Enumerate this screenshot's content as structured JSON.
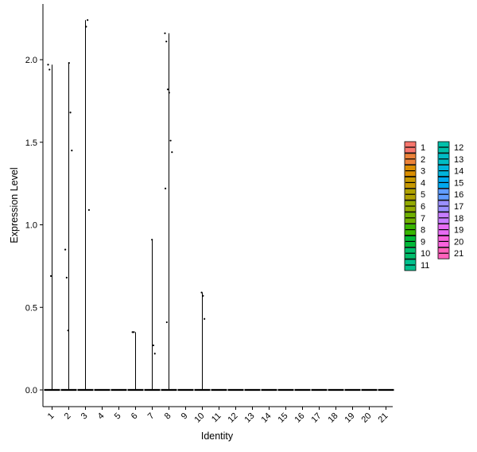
{
  "chart_data": {
    "type": "violin",
    "xlabel": "Identity",
    "ylabel": "Expression Level",
    "categories": [
      "1",
      "2",
      "3",
      "4",
      "5",
      "6",
      "7",
      "8",
      "9",
      "10",
      "11",
      "12",
      "13",
      "14",
      "15",
      "16",
      "17",
      "18",
      "19",
      "20",
      "21"
    ],
    "yticks": [
      0.0,
      0.5,
      1.0,
      1.5,
      2.0
    ],
    "ytick_labels": [
      "0.0",
      "0.5",
      "1.0",
      "1.5",
      "2.0"
    ],
    "ylim": [
      -0.1,
      2.3
    ],
    "grid": false,
    "legend_placement": "right",
    "colors": [
      "#F8766D",
      "#EC8239",
      "#DB8E00",
      "#C79800",
      "#AFA100",
      "#93AA00",
      "#6FB100",
      "#38B600",
      "#00BA38",
      "#00BE6C",
      "#00C08D",
      "#00C0AA",
      "#00BCC4",
      "#00B4DC",
      "#00A8EF",
      "#619CFF",
      "#9A8FFF",
      "#C77CFF",
      "#E76BF3",
      "#F962DD",
      "#FF62BC"
    ],
    "violin_max": [
      1.97,
      1.98,
      2.24,
      0.0,
      0.0,
      0.35,
      0.91,
      2.16,
      0.0,
      0.59,
      0.0,
      0.0,
      0.0,
      0.0,
      0.0,
      0.0,
      0.0,
      0.0,
      0.0,
      0.0,
      0.0
    ],
    "points": [
      {
        "group": "1",
        "y": 1.97
      },
      {
        "group": "1",
        "y": 1.94
      },
      {
        "group": "1",
        "y": 0.69
      },
      {
        "group": "2",
        "y": 1.98
      },
      {
        "group": "2",
        "y": 1.68
      },
      {
        "group": "2",
        "y": 1.45
      },
      {
        "group": "2",
        "y": 0.85
      },
      {
        "group": "2",
        "y": 0.68
      },
      {
        "group": "2",
        "y": 0.36
      },
      {
        "group": "3",
        "y": 2.2
      },
      {
        "group": "3",
        "y": 2.24
      },
      {
        "group": "3",
        "y": 1.09
      },
      {
        "group": "6",
        "y": 0.35
      },
      {
        "group": "6",
        "y": 0.35
      },
      {
        "group": "7",
        "y": 0.91
      },
      {
        "group": "7",
        "y": 0.27
      },
      {
        "group": "7",
        "y": 0.22
      },
      {
        "group": "8",
        "y": 2.16
      },
      {
        "group": "8",
        "y": 2.11
      },
      {
        "group": "8",
        "y": 1.82
      },
      {
        "group": "8",
        "y": 1.8
      },
      {
        "group": "8",
        "y": 1.51
      },
      {
        "group": "8",
        "y": 1.44
      },
      {
        "group": "8",
        "y": 1.22
      },
      {
        "group": "8",
        "y": 0.41
      },
      {
        "group": "10",
        "y": 0.59
      },
      {
        "group": "10",
        "y": 0.57
      },
      {
        "group": "10",
        "y": 0.43
      }
    ],
    "legend": [
      "1",
      "2",
      "3",
      "4",
      "5",
      "6",
      "7",
      "8",
      "9",
      "10",
      "11",
      "12",
      "13",
      "14",
      "15",
      "16",
      "17",
      "18",
      "19",
      "20",
      "21"
    ]
  }
}
